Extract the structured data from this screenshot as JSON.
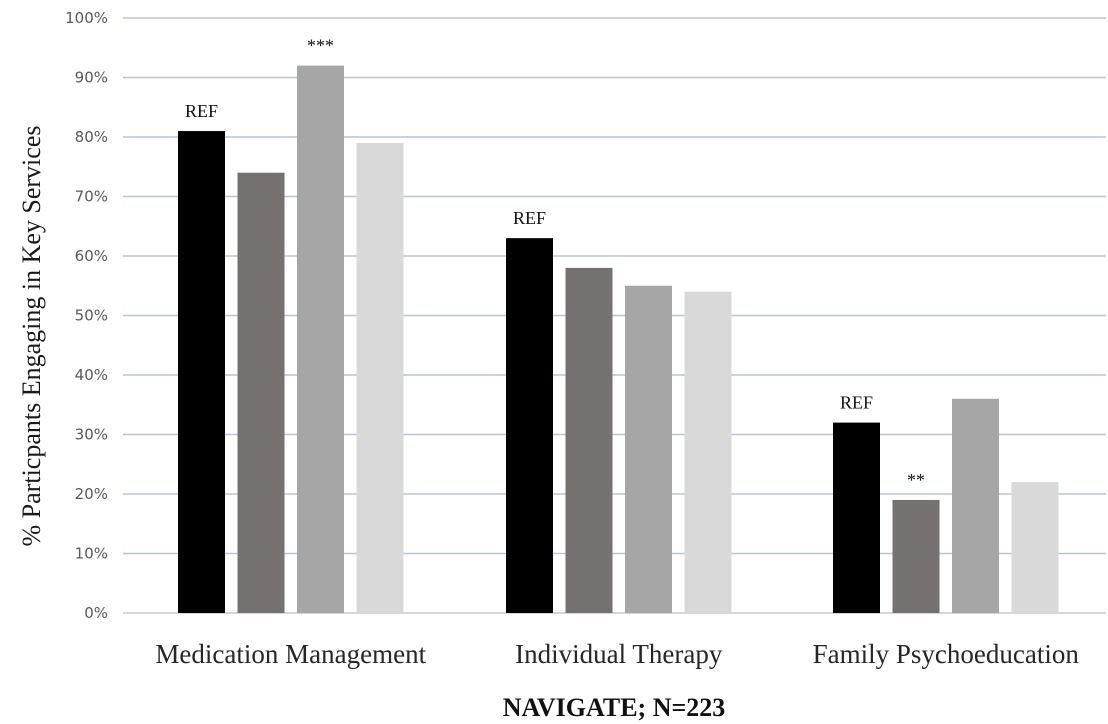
{
  "chart_data": {
    "type": "bar",
    "title": "",
    "xlabel": "NAVIGATE; N=223",
    "ylabel": "% Particpants Engaging in Key Services",
    "ylim": [
      0,
      100
    ],
    "yticks": [
      "0%",
      "10%",
      "20%",
      "30%",
      "40%",
      "50%",
      "60%",
      "70%",
      "80%",
      "90%",
      "100%"
    ],
    "categories": [
      "Medication Management",
      "Individual Therapy",
      "Family Psychoeducation"
    ],
    "series": [
      {
        "color": "#000000",
        "values": [
          81,
          63,
          32
        ]
      },
      {
        "color": "#767171",
        "values": [
          74,
          58,
          19
        ]
      },
      {
        "color": "#a6a6a6",
        "values": [
          92,
          55,
          36
        ]
      },
      {
        "color": "#d9d9d9",
        "values": [
          79,
          54,
          22
        ]
      }
    ],
    "annotations": [
      {
        "category": 0,
        "series": 0,
        "text": "REF"
      },
      {
        "category": 0,
        "series": 2,
        "text": "***"
      },
      {
        "category": 1,
        "series": 0,
        "text": "REF"
      },
      {
        "category": 2,
        "series": 0,
        "text": "REF"
      },
      {
        "category": 2,
        "series": 1,
        "text": "**"
      }
    ],
    "grid": true,
    "legend": "none"
  }
}
